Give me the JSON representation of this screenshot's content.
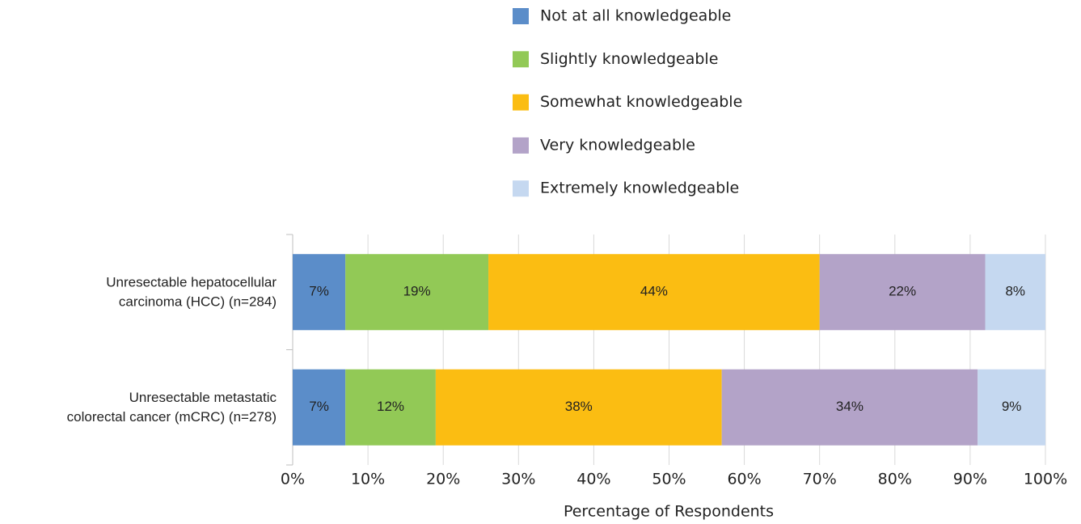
{
  "chart_data": {
    "type": "stacked_barh",
    "xlabel": "Percentage of Respondents",
    "categories": [
      [
        "Unresectable hepatocellular",
        "carcinoma (HCC) (n=284)"
      ],
      [
        "Unresectable metastatic",
        "colorectal cancer (mCRC) (n=278)"
      ]
    ],
    "series": [
      {
        "name": "Not at all knowledgeable",
        "color": "#5b8dc9",
        "values": [
          7,
          7
        ],
        "value_labels": [
          "7%",
          "7%"
        ]
      },
      {
        "name": "Slightly knowledgeable",
        "color": "#92c956",
        "values": [
          19,
          12
        ],
        "value_labels": [
          "19%",
          "12%"
        ]
      },
      {
        "name": "Somewhat knowledgeable",
        "color": "#fbbd12",
        "values": [
          44,
          38
        ],
        "value_labels": [
          "44%",
          "38%"
        ]
      },
      {
        "name": "Very knowledgeable",
        "color": "#b3a3c8",
        "values": [
          22,
          34
        ],
        "value_labels": [
          "22%",
          "34%"
        ]
      },
      {
        "name": "Extremely knowledgeable",
        "color": "#c5d8f0",
        "values": [
          8,
          9
        ],
        "value_labels": [
          "8%",
          "9%"
        ]
      }
    ],
    "xlim": [
      0,
      100
    ],
    "xticks": [
      {
        "value": 0,
        "label": "0%"
      },
      {
        "value": 10,
        "label": "10%"
      },
      {
        "value": 20,
        "label": "20%"
      },
      {
        "value": 30,
        "label": "30%"
      },
      {
        "value": 40,
        "label": "40%"
      },
      {
        "value": 50,
        "label": "50%"
      },
      {
        "value": 60,
        "label": "60%"
      },
      {
        "value": 70,
        "label": "70%"
      },
      {
        "value": 80,
        "label": "80%"
      },
      {
        "value": 90,
        "label": "90%"
      },
      {
        "value": 100,
        "label": "100%"
      }
    ],
    "grid": true
  }
}
